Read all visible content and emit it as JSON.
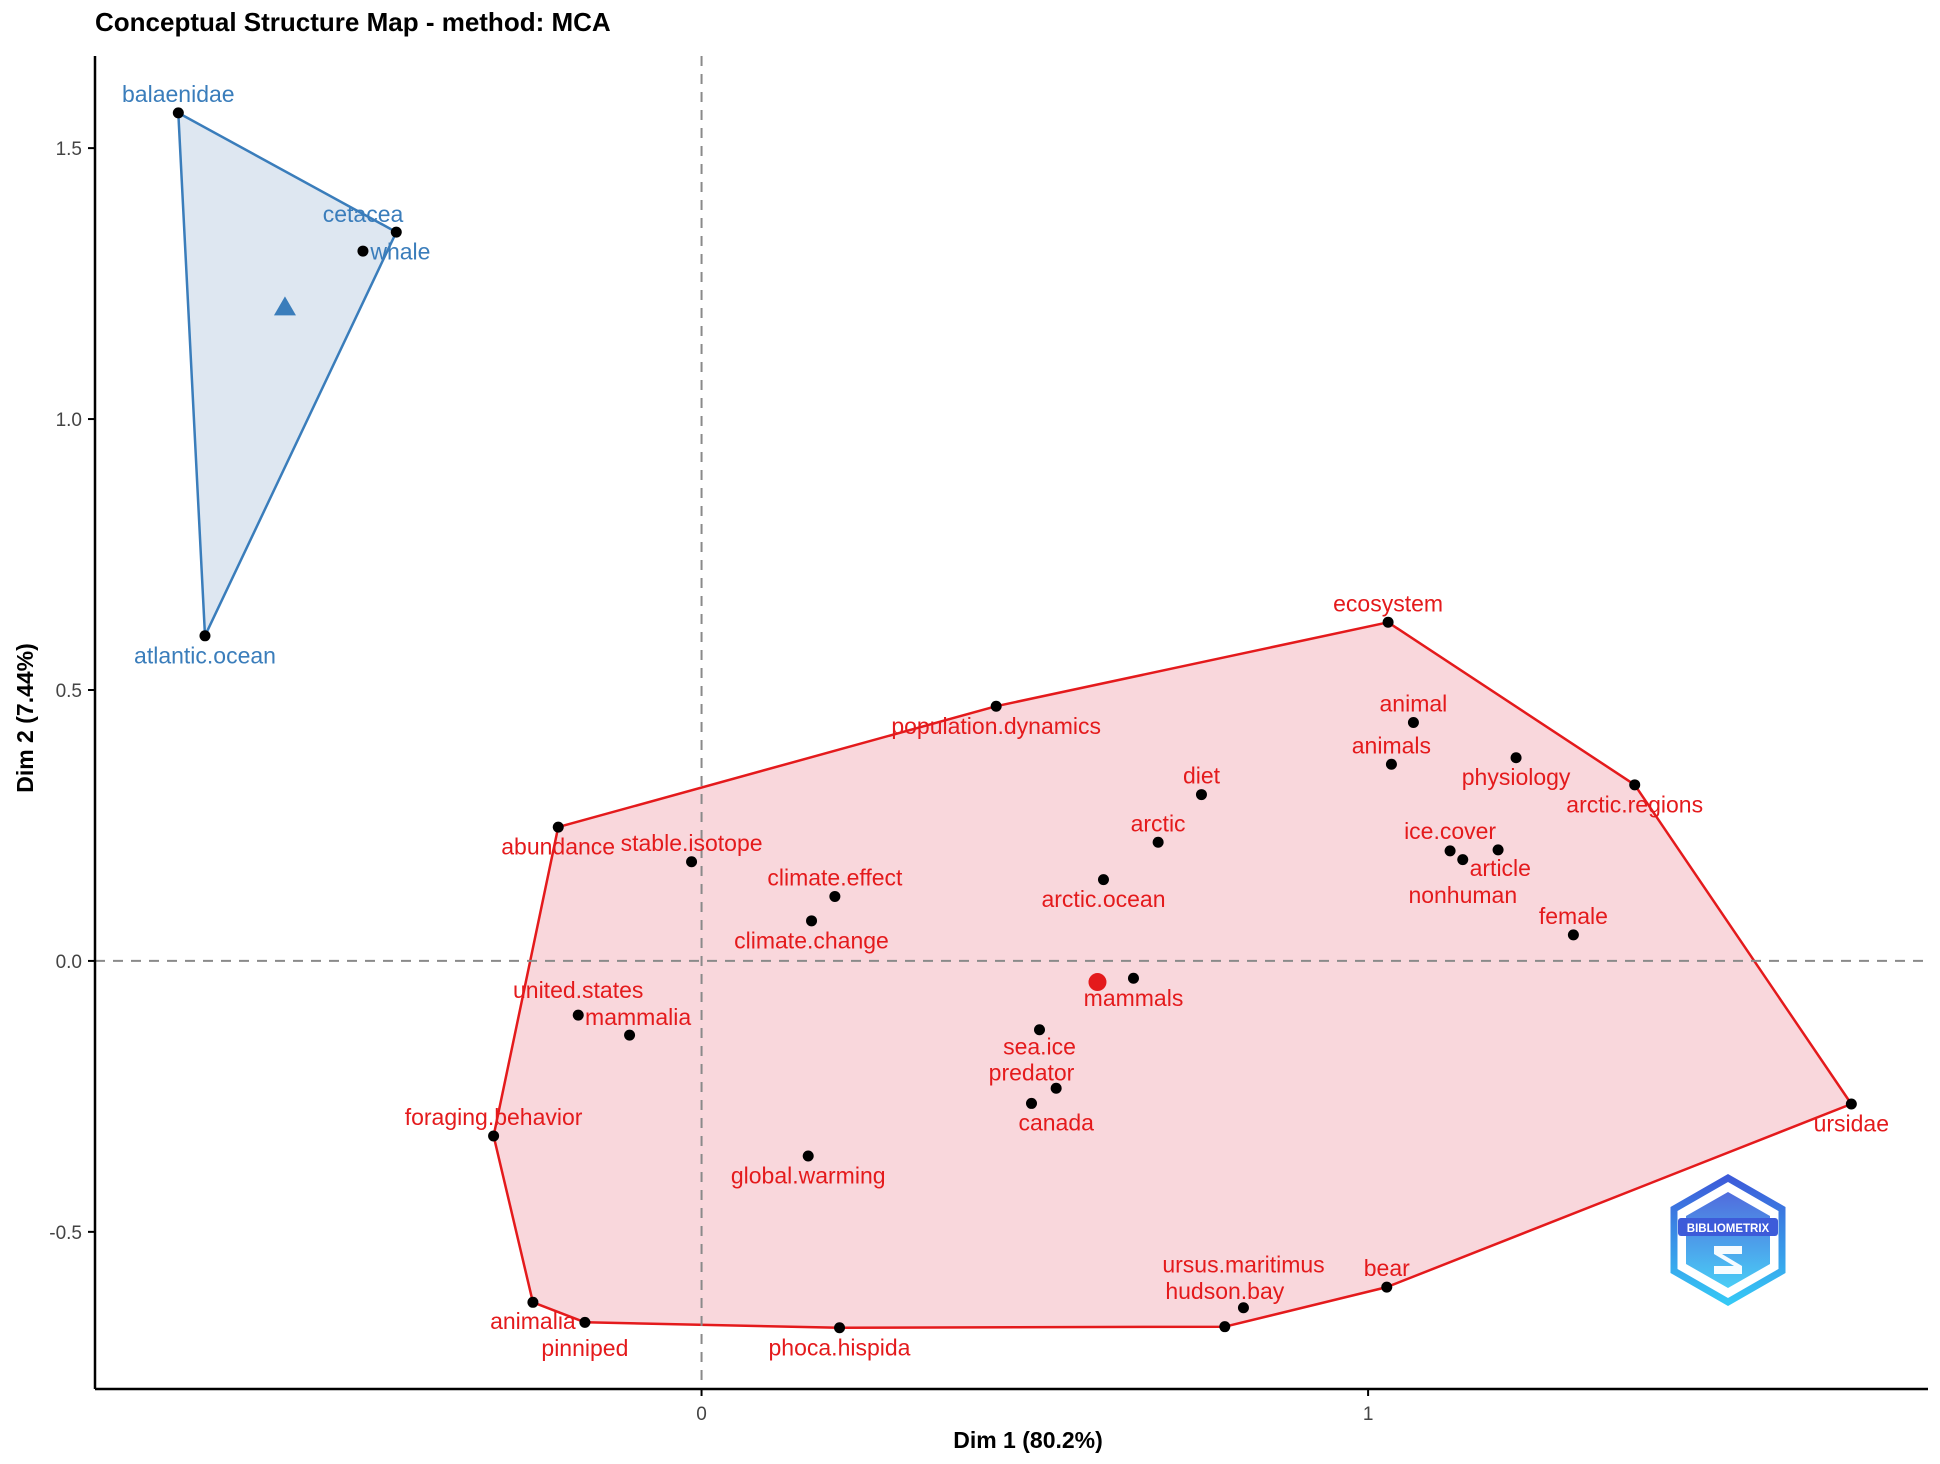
{
  "chart_data": {
    "type": "scatter",
    "title": "Conceptual Structure Map - method: MCA",
    "xlabel": "Dim 1 (80.2%)",
    "ylabel": "Dim 2 (7.44%)",
    "xlim": [
      -0.91,
      1.84
    ],
    "ylim": [
      -0.79,
      1.67
    ],
    "x_ticks": [
      0,
      1
    ],
    "y_ticks": [
      -0.5,
      0.0,
      0.5,
      1.0,
      1.5
    ],
    "y_tick_labels": [
      "-0.5",
      "0.0",
      "0.5",
      "1.0",
      "1.5"
    ],
    "reference_lines": {
      "x": 0,
      "y": 0,
      "style": "dashed"
    },
    "grid": false,
    "clusters": [
      {
        "color": "#3A7DBB",
        "fill": "#DCE6F0",
        "centroid": {
          "x": -0.625,
          "y": 1.206,
          "marker": "triangle"
        },
        "hull_order": [
          "balaenidae",
          "whale",
          "atlantic.ocean"
        ],
        "points": [
          {
            "label": "balaenidae",
            "x": -0.785,
            "y": 1.565
          },
          {
            "label": "whale",
            "x": -0.458,
            "y": 1.345
          },
          {
            "label": "cetacea",
            "x": -0.508,
            "y": 1.31
          },
          {
            "label": "atlantic.ocean",
            "x": -0.745,
            "y": 0.6
          }
        ]
      },
      {
        "color": "#E41A1C",
        "fill": "#F9D5DA",
        "centroid": {
          "x": 0.594,
          "y": -0.039,
          "marker": "circle"
        },
        "hull_order": [
          "abundance",
          "population.dynamics",
          "ecosystem",
          "arctic.regions",
          "ursidae",
          "bear",
          "hudson.bay",
          "phoca.hispida",
          "pinniped",
          "animalia",
          "foraging.behavior"
        ],
        "points": [
          {
            "label": "ecosystem",
            "x": 1.03,
            "y": 0.625
          },
          {
            "label": "population.dynamics",
            "x": 0.442,
            "y": 0.47
          },
          {
            "label": "animal",
            "x": 1.068,
            "y": 0.44
          },
          {
            "label": "physiology",
            "x": 1.222,
            "y": 0.375
          },
          {
            "label": "animals",
            "x": 1.035,
            "y": 0.363
          },
          {
            "label": "arctic.regions",
            "x": 1.4,
            "y": 0.325
          },
          {
            "label": "diet",
            "x": 0.75,
            "y": 0.307
          },
          {
            "label": "abundance",
            "x": -0.215,
            "y": 0.247
          },
          {
            "label": "arctic",
            "x": 0.685,
            "y": 0.219
          },
          {
            "label": "article",
            "x": 1.195,
            "y": 0.205
          },
          {
            "label": "ice.cover",
            "x": 1.123,
            "y": 0.203
          },
          {
            "label": "nonhuman",
            "x": 1.142,
            "y": 0.187
          },
          {
            "label": "stable.isotope",
            "x": -0.015,
            "y": 0.183
          },
          {
            "label": "arctic.ocean",
            "x": 0.603,
            "y": 0.15
          },
          {
            "label": "climate.effect",
            "x": 0.2,
            "y": 0.119
          },
          {
            "label": "climate.change",
            "x": 0.165,
            "y": 0.074
          },
          {
            "label": "female",
            "x": 1.308,
            "y": 0.048
          },
          {
            "label": "mammals",
            "x": 0.648,
            "y": -0.032
          },
          {
            "label": "united.states",
            "x": -0.185,
            "y": -0.1
          },
          {
            "label": "sea.ice",
            "x": 0.507,
            "y": -0.127
          },
          {
            "label": "mammalia",
            "x": -0.108,
            "y": -0.137
          },
          {
            "label": "canada",
            "x": 0.532,
            "y": -0.235
          },
          {
            "label": "predator",
            "x": 0.495,
            "y": -0.263
          },
          {
            "label": "ursidae",
            "x": 1.725,
            "y": -0.264
          },
          {
            "label": "foraging.behavior",
            "x": -0.312,
            "y": -0.323
          },
          {
            "label": "global.warming",
            "x": 0.16,
            "y": -0.36
          },
          {
            "label": "bear",
            "x": 1.028,
            "y": -0.602
          },
          {
            "label": "animalia",
            "x": -0.253,
            "y": -0.63
          },
          {
            "label": "ursus.maritimus",
            "x": 0.813,
            "y": -0.64
          },
          {
            "label": "pinniped",
            "x": -0.175,
            "y": -0.667
          },
          {
            "label": "hudson.bay",
            "x": 0.785,
            "y": -0.675
          },
          {
            "label": "phoca.hispida",
            "x": 0.207,
            "y": -0.677
          }
        ]
      }
    ]
  },
  "logo": {
    "text": "BIBLIOMETRIX"
  }
}
